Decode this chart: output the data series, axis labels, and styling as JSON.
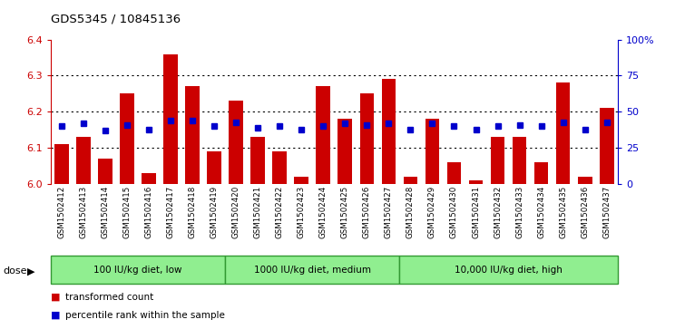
{
  "title": "GDS5345 / 10845136",
  "samples": [
    "GSM1502412",
    "GSM1502413",
    "GSM1502414",
    "GSM1502415",
    "GSM1502416",
    "GSM1502417",
    "GSM1502418",
    "GSM1502419",
    "GSM1502420",
    "GSM1502421",
    "GSM1502422",
    "GSM1502423",
    "GSM1502424",
    "GSM1502425",
    "GSM1502426",
    "GSM1502427",
    "GSM1502428",
    "GSM1502429",
    "GSM1502430",
    "GSM1502431",
    "GSM1502432",
    "GSM1502433",
    "GSM1502434",
    "GSM1502435",
    "GSM1502436",
    "GSM1502437"
  ],
  "bar_values": [
    6.11,
    6.13,
    6.07,
    6.25,
    6.03,
    6.36,
    6.27,
    6.09,
    6.23,
    6.13,
    6.09,
    6.02,
    6.27,
    6.18,
    6.25,
    6.29,
    6.02,
    6.18,
    6.06,
    6.01,
    6.13,
    6.13,
    6.06,
    6.28,
    6.02,
    6.21
  ],
  "percentile_values": [
    40,
    42,
    37,
    41,
    38,
    44,
    44,
    40,
    43,
    39,
    40,
    38,
    40,
    42,
    41,
    42,
    38,
    42,
    40,
    38,
    40,
    41,
    40,
    43,
    38,
    43
  ],
  "groups": [
    {
      "label": "100 IU/kg diet, low",
      "start": 0,
      "end": 8
    },
    {
      "label": "1000 IU/kg diet, medium",
      "start": 8,
      "end": 16
    },
    {
      "label": "10,000 IU/kg diet, high",
      "start": 16,
      "end": 26
    }
  ],
  "ymin": 6.0,
  "ymax": 6.4,
  "yticks_left": [
    6.0,
    6.1,
    6.2,
    6.3,
    6.4
  ],
  "yticks_right": [
    0,
    25,
    50,
    75,
    100
  ],
  "ytick_labels_right": [
    "0",
    "25",
    "50",
    "75",
    "100%"
  ],
  "bar_color": "#cc0000",
  "percentile_color": "#0000cc",
  "bg_color": "#ffffff",
  "plot_bg_color": "#ffffff",
  "group_fill": "#90ee90",
  "group_edge": "#339933",
  "dose_label": "dose"
}
